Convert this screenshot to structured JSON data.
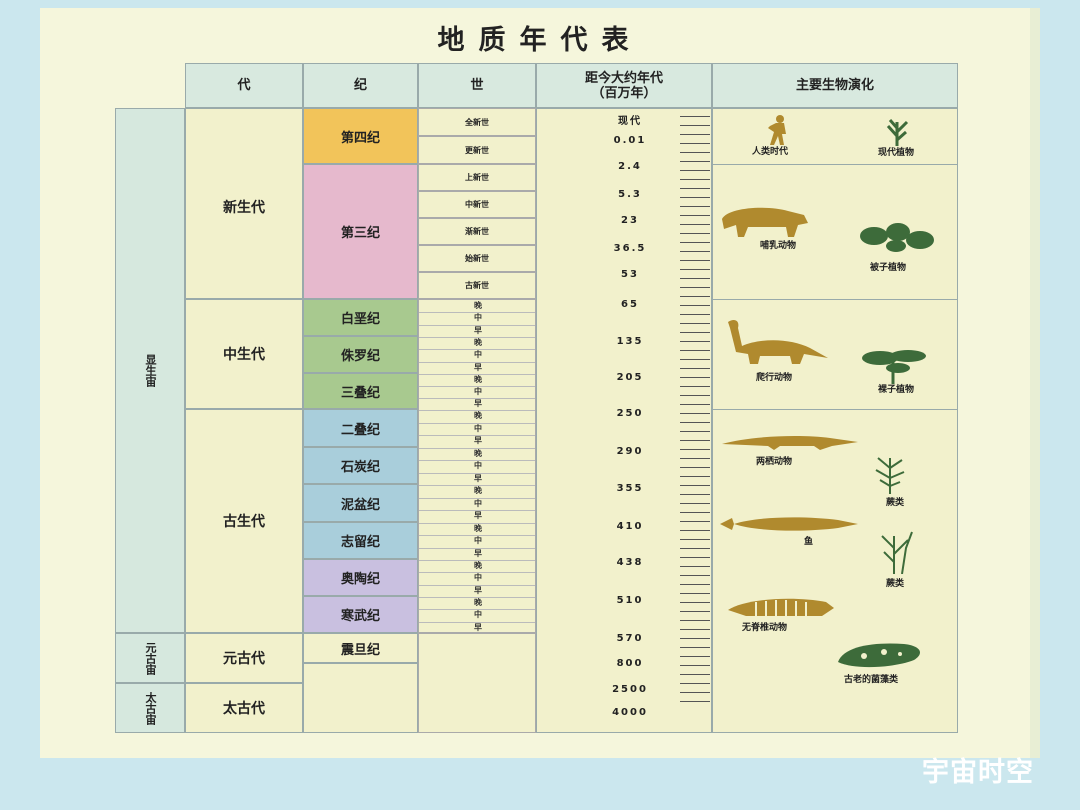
{
  "title": "地质年代表",
  "headers": {
    "era": "代",
    "period": "纪",
    "epoch": "世",
    "age": "距今大约年代\n（百万年）",
    "biology": "主要生物演化"
  },
  "eons": [
    "显生宙",
    "元古宙",
    "太古宙"
  ],
  "eras": [
    "新生代",
    "中生代",
    "古生代",
    "元古代",
    "太古代"
  ],
  "periods": [
    "第四纪",
    "第三纪",
    "白垩纪",
    "侏罗纪",
    "三叠纪",
    "二叠纪",
    "石炭纪",
    "泥盆纪",
    "志留纪",
    "奥陶纪",
    "寒武纪",
    "震旦纪"
  ],
  "epochs": [
    "全新世",
    "更新世",
    "上新世",
    "中新世",
    "渐新世",
    "始新世",
    "古新世"
  ],
  "subdivisions": [
    "晚",
    "中",
    "早"
  ],
  "ages": [
    "现代",
    "0.01",
    "2.4",
    "5.3",
    "23",
    "36.5",
    "53",
    "65",
    "135",
    "205",
    "250",
    "290",
    "355",
    "410",
    "438",
    "510",
    "570",
    "800",
    "2500",
    "4000"
  ],
  "biology": [
    "人类时代",
    "现代植物",
    "哺乳动物",
    "被子植物",
    "爬行动物",
    "裸子植物",
    "两栖动物",
    "蕨类",
    "鱼",
    "蕨类",
    "无脊椎动物",
    "古老的菌藻类"
  ],
  "icons": [
    "human-figure-icon",
    "modern-plant-icon",
    "mammal-icon",
    "angiosperm-icon",
    "dinosaur-icon",
    "gymnosperm-icon",
    "amphibian-icon",
    "fern-icon",
    "fish-icon",
    "fern-icon",
    "trilobite-icon",
    "algae-icon"
  ],
  "colors": {
    "quaternary": "#f2c45a",
    "tertiary": "#e6b9cd",
    "mesozoic": "#a8c98f",
    "paleozoic_blue": "#a9cedb",
    "paleozoic_purple": "#c9c0e0",
    "icon": "#b08a2e",
    "plant": "#3d6b3a"
  },
  "watermark": "宇宙时空"
}
